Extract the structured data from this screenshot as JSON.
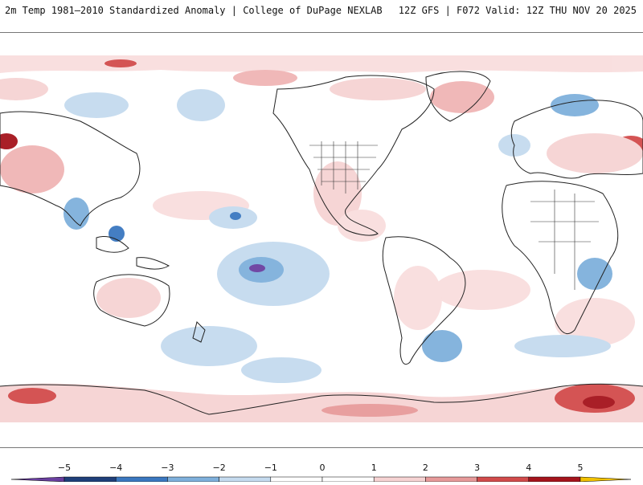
{
  "header": {
    "left_title": "2m Temp 1981–2010 Standardized Anomaly | College of DuPage NEXLAB",
    "right_title": "12Z GFS | F072 Valid: 12Z THU NOV 20 2025"
  },
  "colorbar": {
    "ticks": [
      "−5",
      "−4",
      "−3",
      "−2",
      "−1",
      "0",
      "1",
      "2",
      "3",
      "4",
      "5"
    ],
    "colors": [
      "#6a3fa0",
      "#1f3f7a",
      "#3b78c0",
      "#7fb0dc",
      "#c5dbef",
      "#ffffff",
      "#f6d3d3",
      "#e79a9a",
      "#d24b4b",
      "#a5141c",
      "#f2c200"
    ]
  }
}
